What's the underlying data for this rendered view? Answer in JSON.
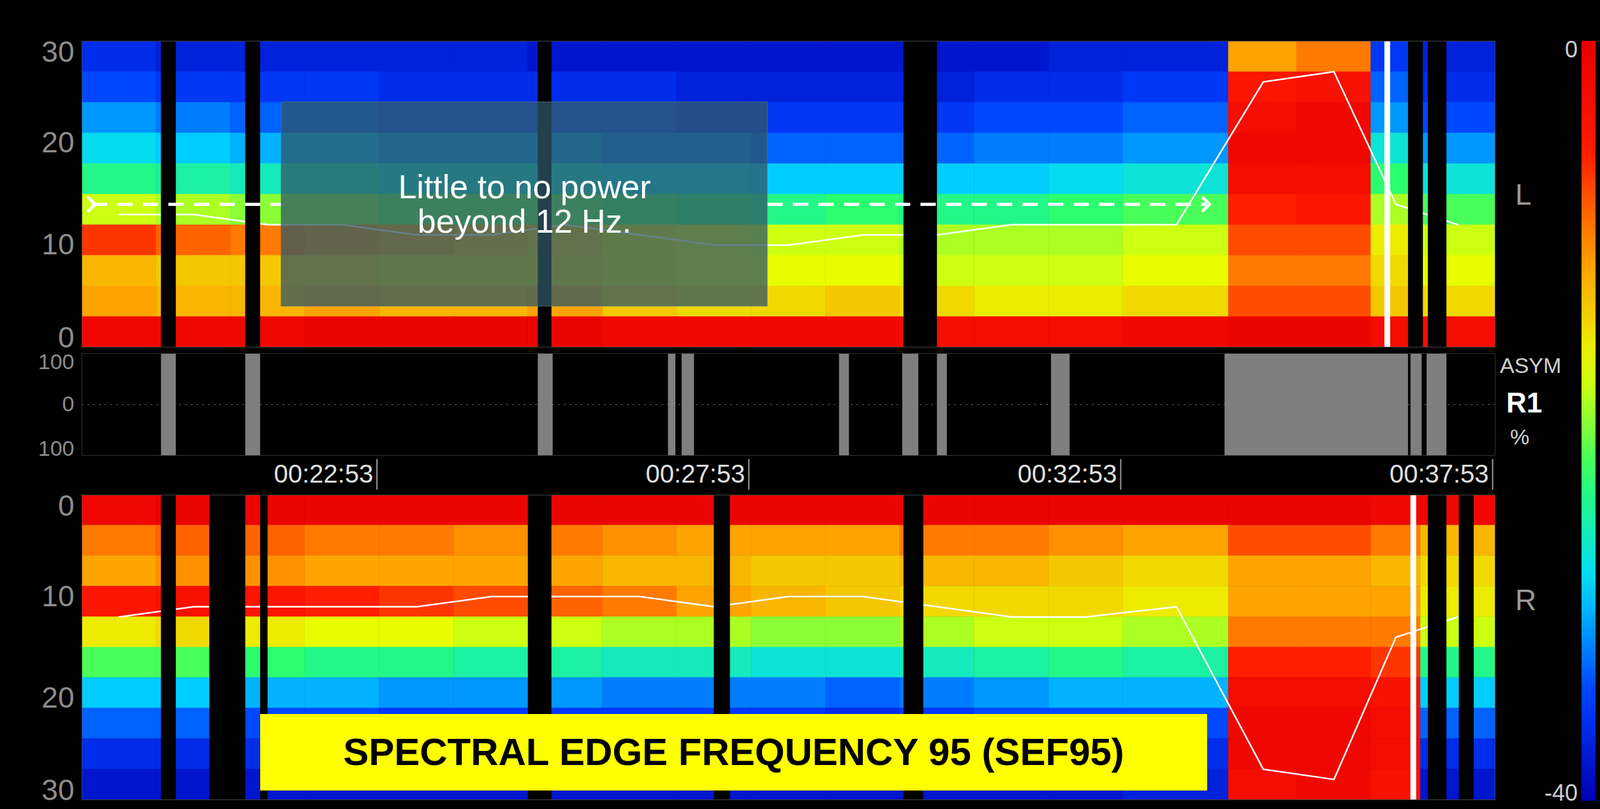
{
  "chart_data": {
    "type": "heatmap",
    "xlim": [
      1135,
      2275
    ],
    "xticks": [
      {
        "value": 1373,
        "label": "00:22:53"
      },
      {
        "value": 1673,
        "label": "00:27:53"
      },
      {
        "value": 1973,
        "label": "00:32:53"
      },
      {
        "value": 2273,
        "label": "00:37:53"
      }
    ],
    "time_edges": [
      1135,
      1195,
      1255,
      1315,
      1375,
      1435,
      1495,
      1555,
      1615,
      1675,
      1735,
      1795,
      1855,
      1915,
      1975,
      2060,
      2115,
      2175,
      2215,
      2275
    ],
    "freq_edges": [
      0,
      3,
      6,
      9,
      12,
      15,
      18,
      21,
      24,
      27,
      30
    ],
    "colorbar": {
      "range": [
        -40,
        0
      ],
      "ticks": [
        0,
        -40
      ]
    },
    "sef95_x": [
      1165,
      1225,
      1285,
      1345,
      1405,
      1465,
      1525,
      1585,
      1645,
      1705,
      1765,
      1825,
      1885,
      1945,
      2018,
      2088,
      2145,
      2195,
      2245
    ],
    "left": {
      "name": "L",
      "ylim": [
        0,
        30
      ],
      "yticks": [
        0,
        10,
        20,
        30
      ],
      "cells": [
        [
          -2,
          -12,
          -13,
          -7,
          -18,
          -24,
          -28,
          -31,
          -34,
          -36
        ],
        [
          -2,
          -13,
          -14,
          -9,
          -19,
          -25,
          -29,
          -32,
          -35,
          -37
        ],
        [
          -2,
          -13,
          -14,
          -10,
          -20,
          -26,
          -30,
          -33,
          -35,
          -37
        ],
        [
          -1,
          -12,
          -14,
          -11,
          -20,
          -26,
          -30,
          -33,
          -35,
          -37
        ],
        [
          -1,
          -13,
          -15,
          -12,
          -21,
          -27,
          -31,
          -34,
          -36,
          -37
        ],
        [
          -1,
          -13,
          -15,
          -13,
          -21,
          -27,
          -31,
          -34,
          -36,
          -37
        ],
        [
          -1,
          -12,
          -15,
          -14,
          -21,
          -27,
          -31,
          -34,
          -36,
          -38
        ],
        [
          -2,
          -14,
          -16,
          -16,
          -22,
          -28,
          -32,
          -34,
          -36,
          -38
        ],
        [
          -2,
          -15,
          -17,
          -17,
          -23,
          -28,
          -32,
          -35,
          -37,
          -38
        ],
        [
          -2,
          -15,
          -17,
          -18,
          -24,
          -29,
          -33,
          -35,
          -37,
          -38
        ],
        [
          -2,
          -14,
          -17,
          -18,
          -23,
          -29,
          -33,
          -35,
          -37,
          -38
        ],
        [
          -3,
          -15,
          -18,
          -19,
          -24,
          -29,
          -33,
          -35,
          -37,
          -38
        ],
        [
          -3,
          -16,
          -18,
          -19,
          -24,
          -29,
          -32,
          -34,
          -36,
          -38
        ],
        [
          -3,
          -16,
          -18,
          -19,
          -23,
          -28,
          -32,
          -34,
          -36,
          -37
        ],
        [
          -2,
          -15,
          -17,
          -18,
          -22,
          -27,
          -31,
          -33,
          -35,
          -37
        ],
        [
          -1,
          -8,
          -10,
          -8,
          -6,
          -3,
          -2,
          -3,
          -5,
          -12
        ],
        [
          -1,
          -8,
          -10,
          -8,
          -5,
          -3,
          -2,
          -2,
          -4,
          -10
        ],
        [
          -3,
          -14,
          -15,
          -16,
          -19,
          -23,
          -27,
          -31,
          -33,
          -35
        ],
        [
          -3,
          -15,
          -17,
          -18,
          -22,
          -27,
          -31,
          -34,
          -36,
          -37
        ]
      ],
      "sef95": [
        13,
        13,
        12,
        12,
        11,
        11,
        12,
        11,
        10,
        10,
        11,
        11,
        12,
        12,
        12,
        26,
        27,
        14,
        12
      ],
      "artifacts": [
        [
          1199,
          1211
        ],
        [
          1267,
          1279
        ],
        [
          1503,
          1514
        ],
        [
          1798,
          1825
        ],
        [
          2205,
          2217
        ],
        [
          2221,
          2236
        ]
      ],
      "events": [
        2188
      ],
      "annotation": {
        "text": "Little to no power\nbeyond 12 Hz.",
        "x": [
          1296,
          1688
        ],
        "y": [
          4,
          24
        ],
        "arrow_x": [
          1143,
          2042
        ],
        "arrow_y": 14
      }
    },
    "asym": {
      "labels": [
        "ASYM",
        "R1",
        "%"
      ],
      "ylim": [
        -100,
        100
      ],
      "yticks": [
        {
          "value": 100,
          "label": "100"
        },
        0,
        {
          "value": -100,
          "label": "100"
        }
      ],
      "artifacts": [
        [
          1199,
          1211
        ],
        [
          1267,
          1279
        ],
        [
          1503,
          1515
        ],
        [
          1608,
          1614
        ],
        [
          1619,
          1629
        ],
        [
          1746,
          1754
        ],
        [
          1797,
          1810
        ],
        [
          1825,
          1833
        ],
        [
          1917,
          1932
        ],
        [
          2057,
          2205
        ],
        [
          2207,
          2216
        ],
        [
          2220,
          2236
        ]
      ]
    },
    "right": {
      "name": "R",
      "ylim": [
        30,
        0
      ],
      "yticks": [
        0,
        10,
        20,
        30
      ],
      "cells": [
        [
          -2,
          -10,
          -12,
          -5,
          -16,
          -22,
          -29,
          -33,
          -36,
          -38
        ],
        [
          -1,
          -9,
          -11,
          -4,
          -15,
          -22,
          -29,
          -33,
          -36,
          -38
        ],
        [
          -1,
          -9,
          -11,
          -5,
          -16,
          -23,
          -30,
          -34,
          -36,
          -38
        ],
        [
          -1,
          -10,
          -12,
          -6,
          -17,
          -24,
          -30,
          -34,
          -37,
          -38
        ],
        [
          -1,
          -10,
          -12,
          -7,
          -17,
          -24,
          -31,
          -35,
          -37,
          -38
        ],
        [
          -1,
          -11,
          -12,
          -8,
          -18,
          -25,
          -31,
          -35,
          -37,
          -38
        ],
        [
          -1,
          -10,
          -12,
          -9,
          -18,
          -25,
          -31,
          -35,
          -37,
          -38
        ],
        [
          -1,
          -11,
          -13,
          -10,
          -19,
          -26,
          -32,
          -35,
          -37,
          -38
        ],
        [
          -1,
          -12,
          -13,
          -12,
          -19,
          -26,
          -32,
          -35,
          -37,
          -38
        ],
        [
          -1,
          -12,
          -14,
          -13,
          -20,
          -27,
          -32,
          -35,
          -37,
          -38
        ],
        [
          -1,
          -12,
          -14,
          -14,
          -20,
          -27,
          -33,
          -36,
          -37,
          -38
        ],
        [
          -1,
          -10,
          -13,
          -15,
          -19,
          -26,
          -32,
          -35,
          -37,
          -38
        ],
        [
          -1,
          -10,
          -13,
          -15,
          -18,
          -25,
          -31,
          -34,
          -36,
          -38
        ],
        [
          -1,
          -11,
          -14,
          -15,
          -18,
          -24,
          -30,
          -34,
          -36,
          -38
        ],
        [
          -1,
          -12,
          -15,
          -16,
          -19,
          -25,
          -30,
          -34,
          -36,
          -37
        ],
        [
          -1,
          -8,
          -12,
          -12,
          -10,
          -6,
          -3,
          -2,
          -2,
          -3
        ],
        [
          -1,
          -8,
          -12,
          -12,
          -10,
          -6,
          -3,
          -2,
          -2,
          -2
        ],
        [
          -2,
          -10,
          -13,
          -12,
          -10,
          -7,
          -4,
          -3,
          -3,
          -4
        ],
        [
          -2,
          -13,
          -15,
          -16,
          -18,
          -24,
          -29,
          -33,
          -36,
          -38
        ]
      ],
      "sef95": [
        12,
        11,
        11,
        11,
        11,
        10,
        10,
        10,
        11,
        10,
        10,
        11,
        12,
        12,
        11,
        27,
        28,
        14,
        12
      ],
      "artifacts": [
        [
          1199,
          1211
        ],
        [
          1238,
          1267
        ],
        [
          1279,
          1285
        ],
        [
          1495,
          1514
        ],
        [
          1645,
          1658
        ],
        [
          1798,
          1814
        ],
        [
          2221,
          2236
        ],
        [
          2246,
          2258
        ]
      ],
      "events": [
        2209
      ]
    },
    "annotations": [
      {
        "text": "SPECTRAL EDGE FREQUENCY 95 (SEF95)"
      }
    ]
  }
}
